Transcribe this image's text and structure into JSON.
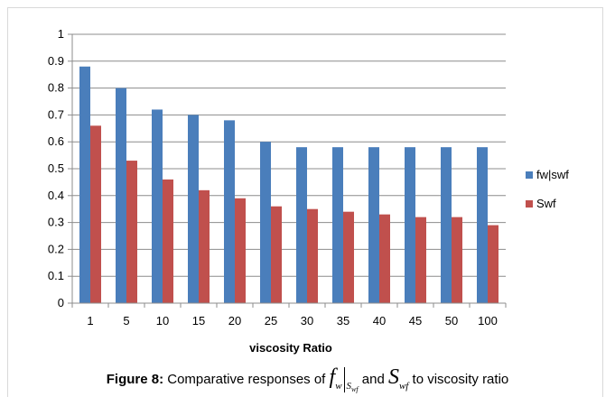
{
  "chart_data": {
    "type": "bar",
    "categories": [
      "1",
      "5",
      "10",
      "15",
      "20",
      "25",
      "30",
      "35",
      "40",
      "45",
      "50",
      "100"
    ],
    "series": [
      {
        "name": "fw|swf",
        "color": "#4a7ebb",
        "values": [
          0.88,
          0.8,
          0.72,
          0.7,
          0.68,
          0.6,
          0.58,
          0.58,
          0.58,
          0.58,
          0.58,
          0.58
        ]
      },
      {
        "name": "Swf",
        "color": "#c0504d",
        "values": [
          0.66,
          0.53,
          0.46,
          0.42,
          0.39,
          0.36,
          0.35,
          0.34,
          0.33,
          0.32,
          0.32,
          0.29
        ]
      }
    ],
    "xlabel": "viscosity Ratio",
    "ylabel": "",
    "ylim": [
      0,
      1
    ],
    "yticks": [
      "0",
      "0.1",
      "0.2",
      "0.3",
      "0.4",
      "0.5",
      "0.6",
      "0.7",
      "0.8",
      "0.9",
      "1"
    ],
    "grid": true,
    "legend_position": "right"
  },
  "caption": {
    "label": "Figure 8:",
    "text_before": "Comparative responses of",
    "f_symbol": "f",
    "f_sub": "w",
    "eval_sub": "S",
    "eval_sub2": "wf",
    "text_and": "and",
    "s_symbol": "S",
    "s_sub": "wf",
    "text_after": "to viscosity ratio"
  }
}
